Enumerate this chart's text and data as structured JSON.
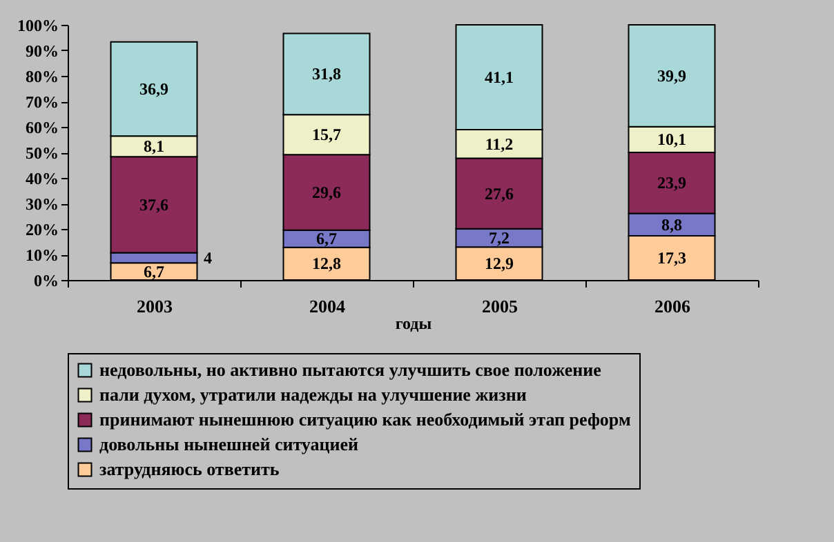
{
  "chart_data": {
    "type": "bar",
    "stacked": true,
    "xlabel": "годы",
    "categories": [
      "2003",
      "2004",
      "2005",
      "2006"
    ],
    "series": [
      {
        "name": "затрудняюсь ответить",
        "color": "#ffcc99",
        "values": [
          6.7,
          12.8,
          12.9,
          17.3
        ],
        "value_labels": [
          "6,7",
          "12,8",
          "12,9",
          "17,3"
        ]
      },
      {
        "name": "довольны нынешней ситуацией",
        "color": "#7878c8",
        "values": [
          4,
          6.7,
          7.2,
          8.8
        ],
        "value_labels": [
          "4",
          "6,7",
          "7,2",
          "8,8"
        ]
      },
      {
        "name": "принимают нынешнюю ситуацию как необходимый этап реформ",
        "color": "#8c2a5a",
        "values": [
          37.6,
          29.6,
          27.6,
          23.9
        ],
        "value_labels": [
          "37,6",
          "29,6",
          "27,6",
          "23,9"
        ]
      },
      {
        "name": "пали духом, утратили надежды на улучшение жизни",
        "color": "#f0f0c8",
        "values": [
          8.1,
          15.7,
          11.2,
          10.1
        ],
        "value_labels": [
          "8,1",
          "15,7",
          "11,2",
          "10,1"
        ]
      },
      {
        "name": "недовольны, но активно пытаются улучшить свое положение",
        "color": "#a8d8d8",
        "values": [
          36.9,
          31.8,
          41.1,
          39.9
        ],
        "value_labels": [
          "36,9",
          "31,8",
          "41,1",
          "39,9"
        ]
      }
    ],
    "ylim": [
      0,
      100
    ],
    "yticks": [
      {
        "value": 0,
        "label": "0%"
      },
      {
        "value": 10,
        "label": "10%"
      },
      {
        "value": 20,
        "label": "20%"
      },
      {
        "value": 30,
        "label": "30%"
      },
      {
        "value": 40,
        "label": "40%"
      },
      {
        "value": 50,
        "label": "50%"
      },
      {
        "value": 60,
        "label": "60%"
      },
      {
        "value": 70,
        "label": "70%"
      },
      {
        "value": 80,
        "label": "80%"
      },
      {
        "value": 90,
        "label": "90%"
      },
      {
        "value": 100,
        "label": "100%"
      }
    ],
    "grid": false,
    "legend": "bottom"
  }
}
